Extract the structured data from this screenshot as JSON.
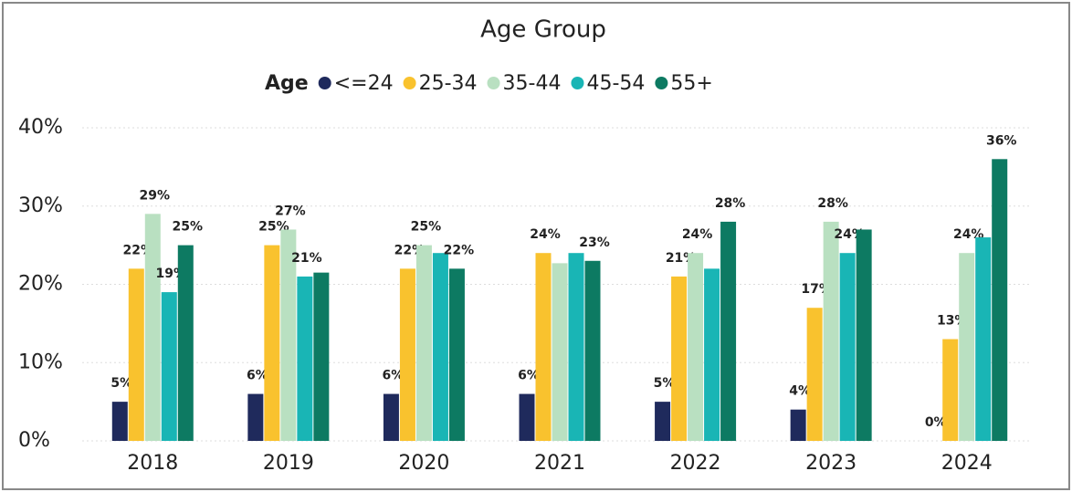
{
  "chart_data": {
    "type": "bar",
    "title": "Age Group",
    "legend_title": "Age",
    "legend": "top",
    "categories": [
      "2018",
      "2019",
      "2020",
      "2021",
      "2022",
      "2023",
      "2024"
    ],
    "series": [
      {
        "name": "<=24",
        "color": "#1f2a5c",
        "values": [
          5,
          6,
          6,
          6,
          5,
          4,
          0
        ],
        "value_labels": [
          "5%",
          "6%",
          "6%",
          "6%",
          "5%",
          "4%",
          "0%"
        ]
      },
      {
        "name": "25-34",
        "color": "#f9c22e",
        "values": [
          22,
          25,
          22,
          24,
          21,
          17,
          13
        ],
        "value_labels": [
          "22%",
          "25%",
          "22%",
          "24%",
          "21%",
          "17%",
          "13%"
        ]
      },
      {
        "name": "35-44",
        "color": "#b9e0c1",
        "values": [
          29,
          27,
          25,
          22.7,
          24,
          28,
          24
        ],
        "value_labels": [
          "29%",
          "27%",
          "25%",
          null,
          "24%",
          "28%",
          "24%"
        ]
      },
      {
        "name": "45-54",
        "color": "#19b5b5",
        "values": [
          19,
          21,
          24,
          24,
          22,
          24,
          26
        ],
        "value_labels": [
          "19%",
          "21%",
          null,
          null,
          null,
          "24%",
          null
        ]
      },
      {
        "name": "55+",
        "color": "#0d7a62",
        "values": [
          25,
          21.5,
          22,
          23,
          28,
          27,
          36
        ],
        "value_labels": [
          "25%",
          null,
          "22%",
          "23%",
          "28%",
          null,
          "36%"
        ]
      }
    ],
    "ylim": [
      0,
      40
    ],
    "yticks": [
      {
        "value": 0,
        "label": "0%"
      },
      {
        "value": 10,
        "label": "10%"
      },
      {
        "value": 20,
        "label": "20%"
      },
      {
        "value": 30,
        "label": "30%"
      },
      {
        "value": 40,
        "label": "40%"
      }
    ],
    "grid": true
  }
}
